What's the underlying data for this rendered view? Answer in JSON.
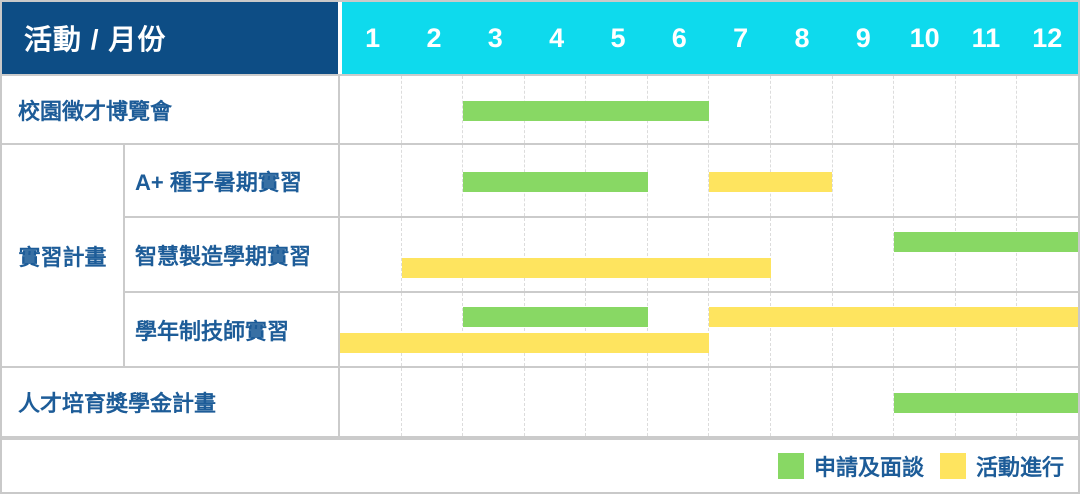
{
  "header": {
    "title": "活動 / 月份",
    "months": [
      "1",
      "2",
      "3",
      "4",
      "5",
      "6",
      "7",
      "8",
      "9",
      "10",
      "11",
      "12"
    ]
  },
  "colors": {
    "header_blue": "#0d4d85",
    "header_cyan": "#0edaed",
    "apply_green": "#88d864",
    "active_yellow": "#fee45f",
    "label_text": "#1d5c98",
    "grid_line": "#cbcbcb",
    "dashed_line": "#dcdcdc",
    "outer_border": "#c9c9c9",
    "header_text": "#ffffff"
  },
  "legend": {
    "items": [
      {
        "phase": "apply",
        "label": "申請及面談"
      },
      {
        "phase": "active",
        "label": "活動進行"
      }
    ]
  },
  "chart_data": {
    "type": "gantt",
    "unit": "month",
    "x_axis_label": "活動 / 月份",
    "months": [
      1,
      2,
      3,
      4,
      5,
      6,
      7,
      8,
      9,
      10,
      11,
      12
    ],
    "phases": {
      "apply": "申請及面談",
      "active": "活動進行"
    },
    "group_label": "實習計畫",
    "rows": [
      {
        "label": "校園徵才博覽會",
        "group": null,
        "tracks": [
          [
            {
              "phase": "apply",
              "start": 3,
              "end": 6
            }
          ]
        ]
      },
      {
        "label": "A+ 種子暑期實習",
        "group": "實習計畫",
        "tracks": [
          [
            {
              "phase": "apply",
              "start": 3,
              "end": 5
            },
            {
              "phase": "active",
              "start": 7,
              "end": 8
            }
          ]
        ]
      },
      {
        "label": "智慧製造學期實習",
        "group": "實習計畫",
        "tracks": [
          [
            {
              "phase": "apply",
              "start": 10,
              "end": 12
            }
          ],
          [
            {
              "phase": "active",
              "start": 2,
              "end": 7
            }
          ]
        ]
      },
      {
        "label": "學年制技師實習",
        "group": "實習計畫",
        "tracks": [
          [
            {
              "phase": "apply",
              "start": 3,
              "end": 5
            },
            {
              "phase": "active",
              "start": 7,
              "end": 12
            }
          ],
          [
            {
              "phase": "active",
              "start": 1,
              "end": 6
            }
          ]
        ]
      },
      {
        "label": "人才培育獎學金計畫",
        "group": null,
        "tracks": [
          [
            {
              "phase": "apply",
              "start": 10,
              "end": 12
            }
          ]
        ]
      }
    ]
  }
}
